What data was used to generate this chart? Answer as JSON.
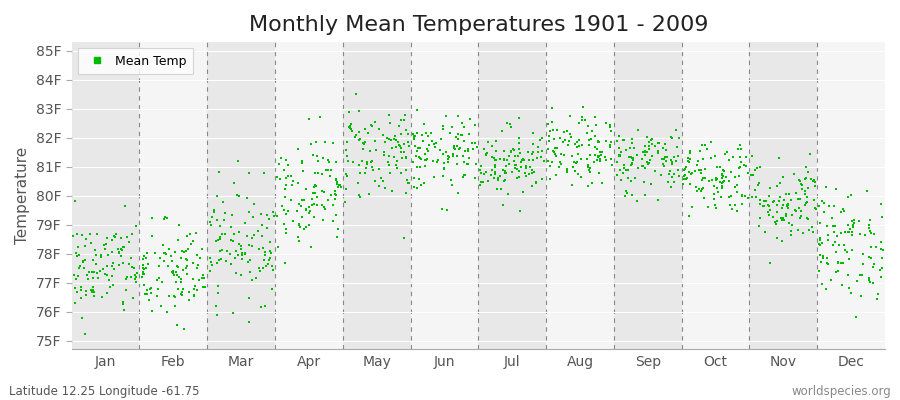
{
  "title": "Monthly Mean Temperatures 1901 - 2009",
  "ylabel": "Temperature",
  "footnote_left": "Latitude 12.25 Longitude -61.75",
  "footnote_right": "worldspecies.org",
  "legend_label": "Mean Temp",
  "dot_color": "#00bb00",
  "background_color": "#ffffff",
  "band_color_dark": "#e8e8e8",
  "band_color_light": "#f5f5f5",
  "ytick_labels": [
    "75F",
    "76F",
    "77F",
    "78F",
    "79F",
    "80F",
    "81F",
    "82F",
    "83F",
    "84F",
    "85F"
  ],
  "ytick_values": [
    75,
    76,
    77,
    78,
    79,
    80,
    81,
    82,
    83,
    84,
    85
  ],
  "ylim": [
    74.7,
    85.3
  ],
  "month_names": [
    "Jan",
    "Feb",
    "Mar",
    "Apr",
    "May",
    "Jun",
    "Jul",
    "Aug",
    "Sep",
    "Oct",
    "Nov",
    "Dec"
  ],
  "month_means": [
    77.5,
    77.3,
    78.4,
    80.2,
    81.5,
    81.4,
    81.2,
    81.5,
    81.2,
    80.7,
    79.8,
    78.3
  ],
  "month_stds": [
    0.85,
    0.9,
    1.0,
    0.95,
    0.85,
    0.65,
    0.6,
    0.6,
    0.6,
    0.65,
    0.75,
    0.95
  ],
  "n_years": 109,
  "seed": 42,
  "xlim": [
    0,
    12
  ],
  "title_fontsize": 16,
  "tick_fontsize": 10,
  "label_fontsize": 11,
  "dot_size": 4,
  "dpi": 100,
  "figsize": [
    9.0,
    4.0
  ]
}
